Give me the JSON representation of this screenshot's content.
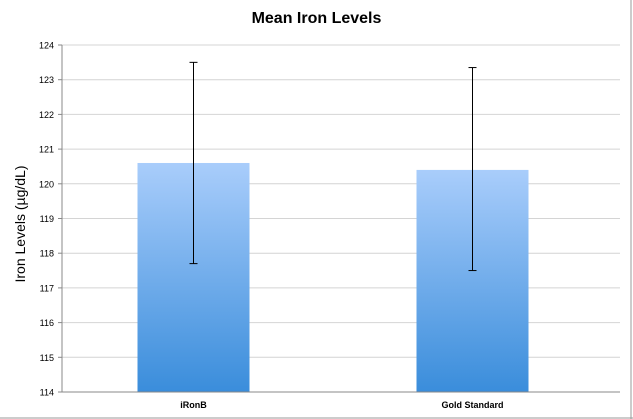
{
  "chart_data": {
    "type": "bar",
    "title": "Mean Iron Levels",
    "xlabel": "",
    "ylabel": "Iron Levels (µg/dL)",
    "categories": [
      "iRonB",
      "Gold Standard"
    ],
    "values": [
      120.6,
      120.4
    ],
    "error_bars": [
      {
        "low": 117.7,
        "high": 123.5
      },
      {
        "low": 117.5,
        "high": 123.35
      }
    ],
    "ylim": [
      114,
      124
    ],
    "yticks": [
      114,
      115,
      116,
      117,
      118,
      119,
      120,
      121,
      122,
      123,
      124
    ],
    "grid": true,
    "legend": "none"
  },
  "colors": {
    "bar_top": "#a9cdfb",
    "bar_bottom": "#3a8ddb",
    "gridline": "#d4d4d4",
    "axis": "#888888",
    "frame": "#9a9a9a"
  }
}
